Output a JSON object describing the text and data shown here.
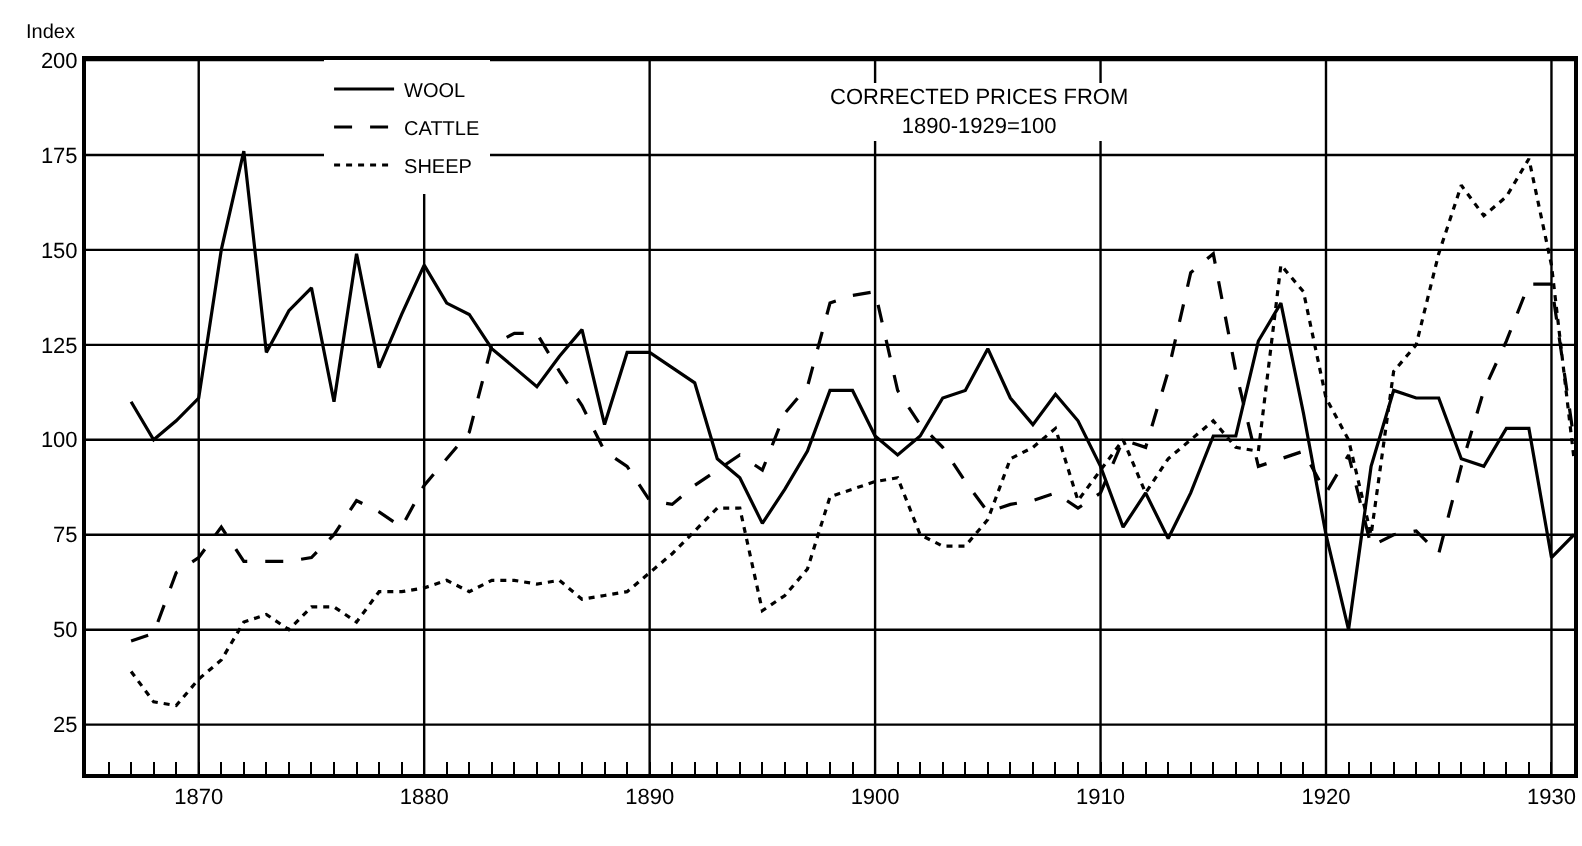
{
  "chart_data": {
    "type": "line",
    "ylabel": "Index",
    "annotations": [
      "CORRECTED PRICES FROM\n1890-1929=100"
    ],
    "x": [
      1867,
      1868,
      1869,
      1870,
      1871,
      1872,
      1873,
      1874,
      1875,
      1876,
      1877,
      1878,
      1879,
      1880,
      1881,
      1882,
      1883,
      1884,
      1885,
      1886,
      1887,
      1888,
      1889,
      1890,
      1891,
      1892,
      1893,
      1894,
      1895,
      1896,
      1897,
      1898,
      1899,
      1900,
      1901,
      1902,
      1903,
      1904,
      1905,
      1906,
      1907,
      1908,
      1909,
      1910,
      1911,
      1912,
      1913,
      1914,
      1915,
      1916,
      1917,
      1918,
      1919,
      1920,
      1921,
      1922,
      1923,
      1924,
      1925,
      1926,
      1927,
      1928,
      1929,
      1930,
      1931
    ],
    "series": [
      {
        "name": "WOOL",
        "color": "#000000",
        "line_style": "solid",
        "values": [
          110,
          100,
          105,
          111,
          150,
          176,
          123,
          134,
          140,
          110,
          149,
          119,
          133,
          146,
          136,
          133,
          124,
          119,
          114,
          122,
          129,
          104,
          123,
          123,
          119,
          115,
          95,
          90,
          78,
          87,
          97,
          113,
          113,
          101,
          96,
          101,
          111,
          113,
          124,
          111,
          104,
          112,
          105,
          93,
          77,
          86,
          74,
          86,
          101,
          101,
          126,
          136,
          107,
          75,
          50,
          93,
          113,
          111,
          111,
          95,
          93,
          103,
          103,
          69,
          75
        ]
      },
      {
        "name": "CATTLE",
        "color": "#000000",
        "line_style": "dashed",
        "values": [
          47,
          49,
          65,
          69,
          77,
          68,
          68,
          68,
          69,
          75,
          84,
          81,
          77,
          88,
          95,
          102,
          125,
          128,
          128,
          118,
          109,
          97,
          93,
          84,
          83,
          88,
          92,
          96,
          92,
          107,
          114,
          136,
          138,
          139,
          113,
          104,
          98,
          89,
          81,
          83,
          84,
          86,
          82,
          86,
          100,
          98,
          118,
          144,
          149,
          118,
          93,
          95,
          97,
          86,
          96,
          72,
          75,
          76,
          70,
          93,
          113,
          126,
          141,
          141,
          100
        ]
      },
      {
        "name": "SHEEP",
        "color": "#000000",
        "line_style": "dotted",
        "values": [
          39,
          31,
          30,
          37,
          42,
          52,
          54,
          50,
          56,
          56,
          52,
          60,
          60,
          61,
          63,
          60,
          63,
          63,
          62,
          63,
          58,
          59,
          60,
          65,
          70,
          76,
          82,
          82,
          55,
          59,
          66,
          85,
          87,
          89,
          90,
          75,
          72,
          72,
          79,
          95,
          98,
          103,
          84,
          92,
          100,
          86,
          95,
          100,
          105,
          98,
          97,
          146,
          139,
          111,
          100,
          75,
          118,
          125,
          149,
          167,
          159,
          164,
          174,
          146,
          95
        ]
      }
    ],
    "xlim": [
      1865,
      1931
    ],
    "xticks": [
      {
        "value": 1866,
        "label": null
      },
      {
        "value": 1867,
        "label": null
      },
      {
        "value": 1868,
        "label": null
      },
      {
        "value": 1869,
        "label": null
      },
      1870,
      {
        "value": 1871,
        "label": null
      },
      {
        "value": 1872,
        "label": null
      },
      {
        "value": 1873,
        "label": null
      },
      {
        "value": 1874,
        "label": null
      },
      {
        "value": 1875,
        "label": null
      },
      {
        "value": 1876,
        "label": null
      },
      {
        "value": 1877,
        "label": null
      },
      {
        "value": 1878,
        "label": null
      },
      {
        "value": 1879,
        "label": null
      },
      1880,
      {
        "value": 1881,
        "label": null
      },
      {
        "value": 1882,
        "label": null
      },
      {
        "value": 1883,
        "label": null
      },
      {
        "value": 1884,
        "label": null
      },
      {
        "value": 1885,
        "label": null
      },
      {
        "value": 1886,
        "label": null
      },
      {
        "value": 1887,
        "label": null
      },
      {
        "value": 1888,
        "label": null
      },
      {
        "value": 1889,
        "label": null
      },
      1890,
      {
        "value": 1891,
        "label": null
      },
      {
        "value": 1892,
        "label": null
      },
      {
        "value": 1893,
        "label": null
      },
      {
        "value": 1894,
        "label": null
      },
      {
        "value": 1895,
        "label": null
      },
      {
        "value": 1896,
        "label": null
      },
      {
        "value": 1897,
        "label": null
      },
      {
        "value": 1898,
        "label": null
      },
      {
        "value": 1899,
        "label": null
      },
      1900,
      {
        "value": 1901,
        "label": null
      },
      {
        "value": 1902,
        "label": null
      },
      {
        "value": 1903,
        "label": null
      },
      {
        "value": 1904,
        "label": null
      },
      {
        "value": 1905,
        "label": null
      },
      {
        "value": 1906,
        "label": null
      },
      {
        "value": 1907,
        "label": null
      },
      {
        "value": 1908,
        "label": null
      },
      {
        "value": 1909,
        "label": null
      },
      1910,
      {
        "value": 1911,
        "label": null
      },
      {
        "value": 1912,
        "label": null
      },
      {
        "value": 1913,
        "label": null
      },
      {
        "value": 1914,
        "label": null
      },
      {
        "value": 1915,
        "label": null
      },
      {
        "value": 1916,
        "label": null
      },
      {
        "value": 1917,
        "label": null
      },
      {
        "value": 1918,
        "label": null
      },
      {
        "value": 1919,
        "label": null
      },
      1920,
      {
        "value": 1921,
        "label": null
      },
      {
        "value": 1922,
        "label": null
      },
      {
        "value": 1923,
        "label": null
      },
      {
        "value": 1924,
        "label": null
      },
      {
        "value": 1925,
        "label": null
      },
      {
        "value": 1926,
        "label": null
      },
      {
        "value": 1927,
        "label": null
      },
      {
        "value": 1928,
        "label": null
      },
      {
        "value": 1929,
        "label": null
      },
      1930,
      {
        "value": 1931,
        "label": null
      }
    ],
    "ylim": [
      12,
      200
    ],
    "yticks": [
      25,
      50,
      75,
      100,
      125,
      150,
      175,
      200
    ],
    "grid": true,
    "legend": "top left",
    "marker": "none"
  }
}
